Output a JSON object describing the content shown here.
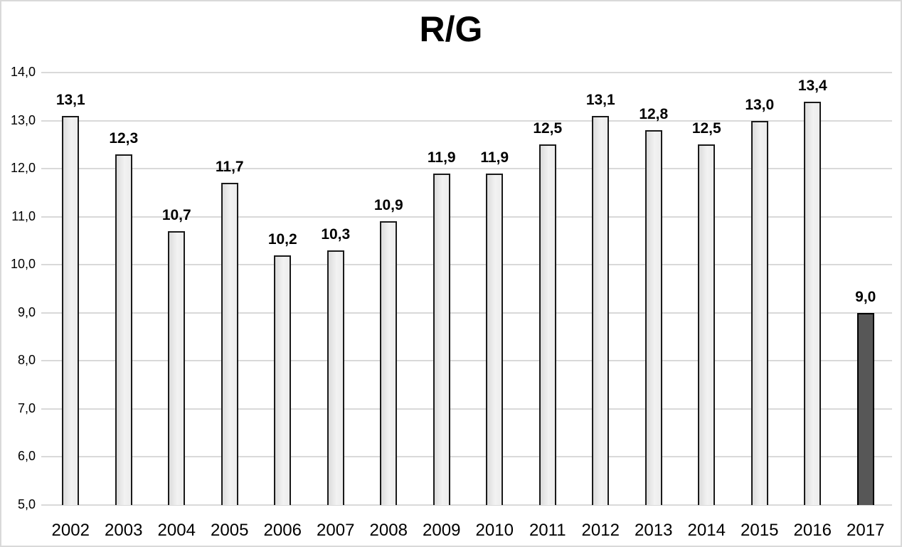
{
  "chart_data": {
    "type": "bar",
    "title": "R/G",
    "categories": [
      "2002",
      "2003",
      "2004",
      "2005",
      "2006",
      "2007",
      "2008",
      "2009",
      "2010",
      "2011",
      "2012",
      "2013",
      "2014",
      "2015",
      "2016",
      "2017"
    ],
    "values": [
      13.1,
      12.3,
      10.7,
      11.7,
      10.2,
      10.3,
      10.9,
      11.9,
      11.9,
      12.5,
      13.1,
      12.8,
      12.5,
      13.0,
      13.4,
      9.0
    ],
    "bar_value_labels": [
      "13,1",
      "12,3",
      "10,7",
      "11,7",
      "10,2",
      "10,3",
      "10,9",
      "11,9",
      "11,9",
      "12,5",
      "13,1",
      "12,8",
      "12,5",
      "13,0",
      "13,4",
      "9,0"
    ],
    "xlabel": "",
    "ylabel": "",
    "ylim": [
      5.0,
      14.0
    ],
    "yticks": [
      {
        "value": 14.0,
        "label": "14,0"
      },
      {
        "value": 13.0,
        "label": "13,0"
      },
      {
        "value": 12.0,
        "label": "12,0"
      },
      {
        "value": 11.0,
        "label": "11,0"
      },
      {
        "value": 10.0,
        "label": "10,0"
      },
      {
        "value": 9.0,
        "label": "9,0"
      },
      {
        "value": 8.0,
        "label": "8,0"
      },
      {
        "value": 7.0,
        "label": "7,0"
      },
      {
        "value": 6.0,
        "label": "6,0"
      },
      {
        "value": 5.0,
        "label": "5,0"
      }
    ],
    "decimal_separator": ",",
    "grid": "horizontal-only",
    "legend": "none",
    "highlight_last_bar": true,
    "colors": {
      "bar_fill_gradient_start": "#dcdcdc",
      "bar_fill_gradient_end": "#f2f2f2",
      "bar_border": "#1a1a1a",
      "highlight_bar_fill": "#575757",
      "highlight_bar_border": "#000000",
      "gridline": "#d9d9d9",
      "text": "#000000",
      "frame_border": "#d9d9d9",
      "background": "#ffffff"
    }
  }
}
